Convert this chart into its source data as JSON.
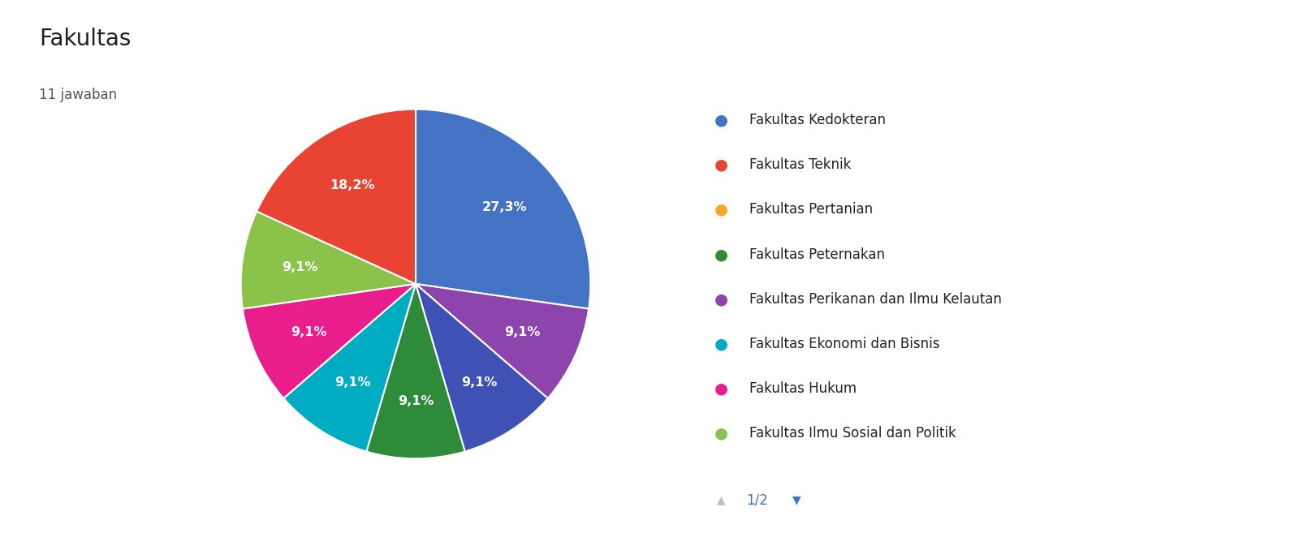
{
  "title": "Fakultas",
  "subtitle": "11 jawaban",
  "legend_labels": [
    "Fakultas Kedokteran",
    "Fakultas Teknik",
    "Fakultas Pertanian",
    "Fakultas Peternakan",
    "Fakultas Perikanan dan Ilmu Kelautan",
    "Fakultas Ekonomi dan Bisnis",
    "Fakultas Hukum",
    "Fakultas Ilmu Sosial dan Politik"
  ],
  "legend_colors": [
    "#4472C4",
    "#E84333",
    "#F9A825",
    "#2E8B3A",
    "#8E44AD",
    "#00ACC1",
    "#E91E8C",
    "#8BC34A"
  ],
  "pie_values": [
    27.3,
    9.1,
    9.1,
    9.1,
    9.1,
    9.1,
    9.1,
    18.2
  ],
  "pie_colors": [
    "#4472C4",
    "#8E44AD",
    "#3F51B5",
    "#2E8B3A",
    "#00ACC1",
    "#E91E8C",
    "#8BC34A",
    "#E84333"
  ],
  "pie_pct": [
    "27,3%",
    "9,1%",
    "9,1%",
    "9,1%",
    "9,1%",
    "9,1%",
    "9,1%",
    "18,2%"
  ],
  "background_color": "#ffffff",
  "title_fontsize": 20,
  "subtitle_fontsize": 12,
  "legend_fontsize": 12,
  "pct_fontsize": 11.5,
  "page_indicator": "1/2"
}
